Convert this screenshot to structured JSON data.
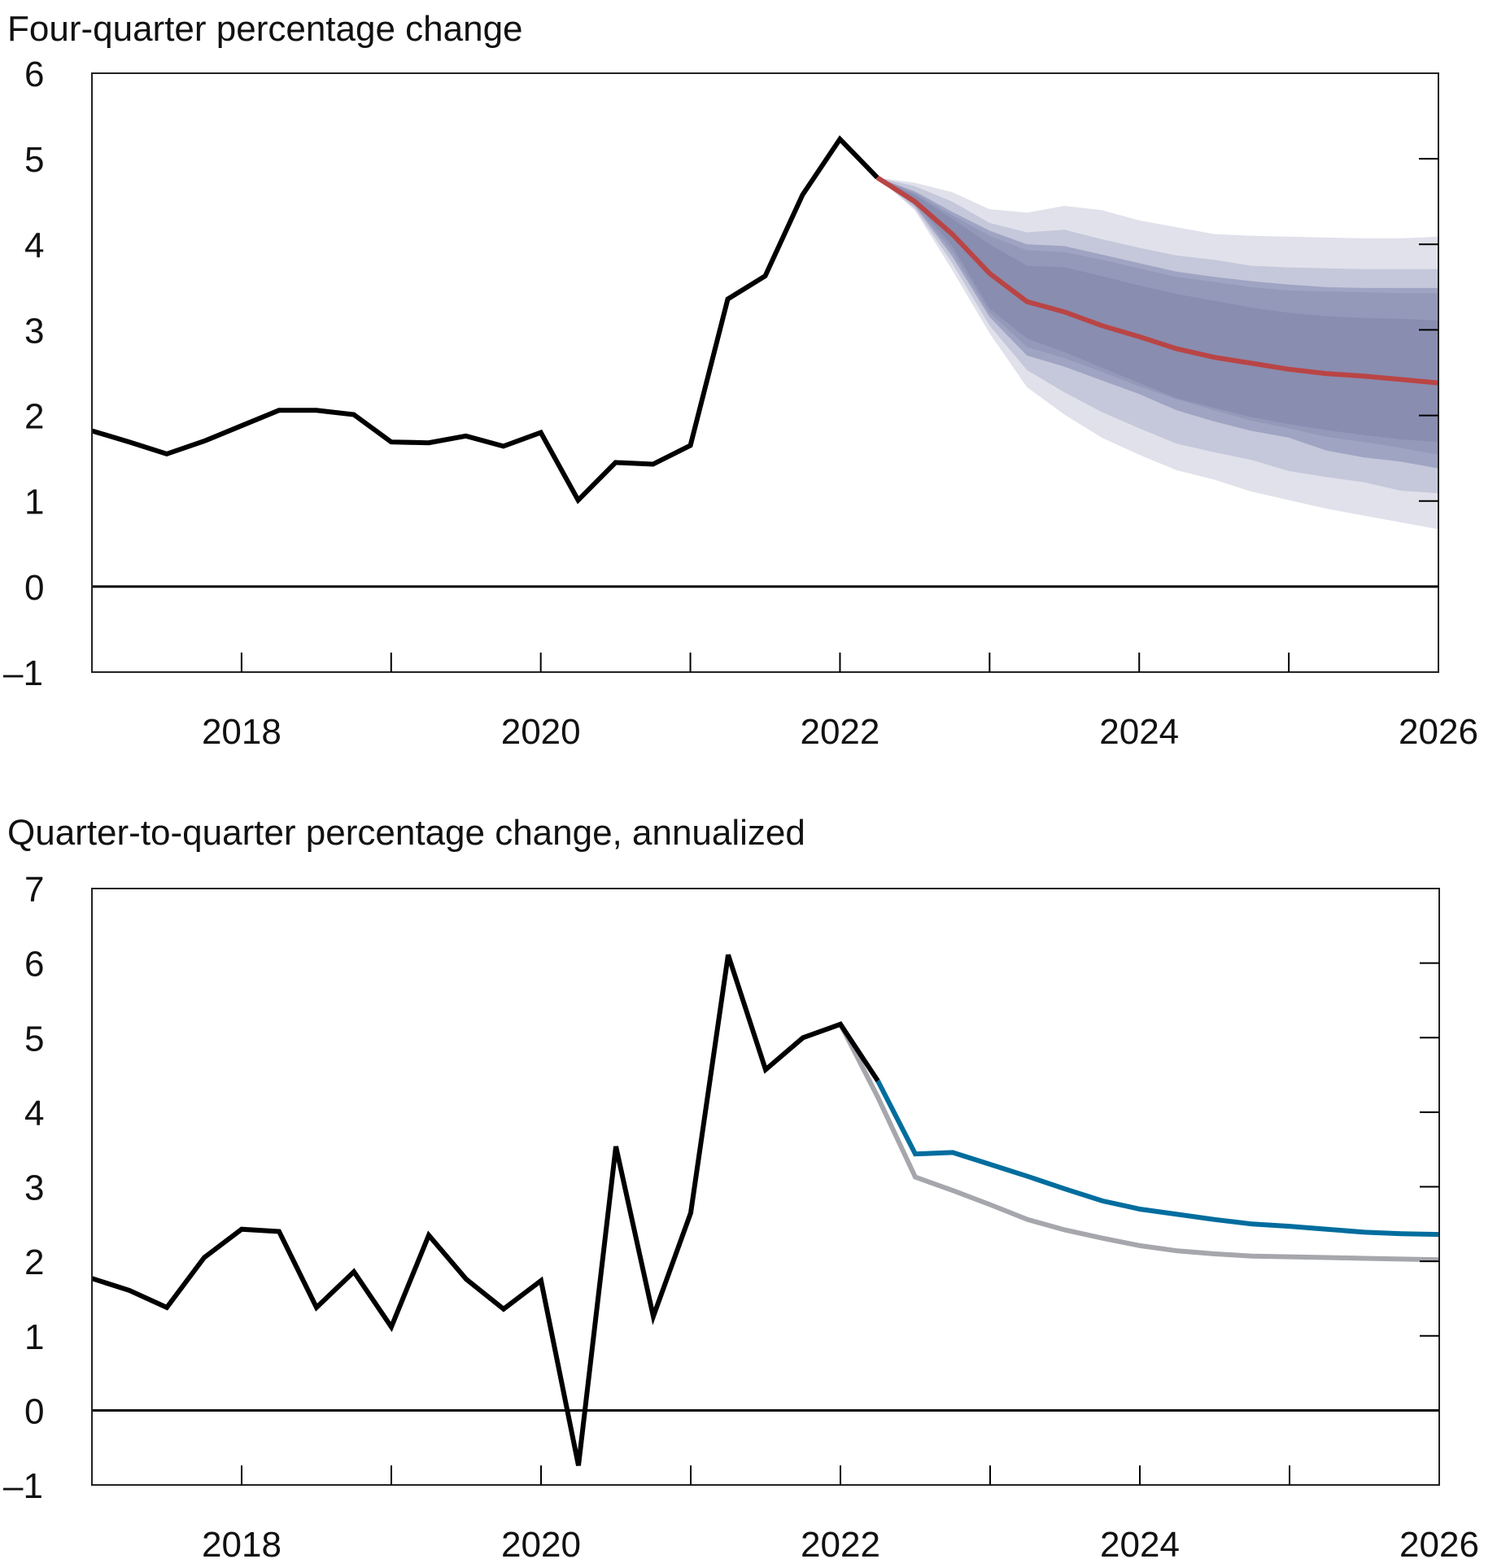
{
  "chart_data": [
    {
      "type": "line",
      "title": "Four-quarter percentage change",
      "ylim": [
        -1,
        6
      ],
      "xlim": [
        "2017Q1",
        "2026Q1"
      ],
      "yticks": [
        "–1",
        "0",
        "1",
        "2",
        "3",
        "4",
        "5",
        "6"
      ],
      "xticks": [
        "2018",
        "2020",
        "2022",
        "2024",
        "2026"
      ],
      "grid": false,
      "colors": {
        "history": "#000000",
        "median": "#b94545",
        "bands": [
          "#e0e1eb",
          "#c5c8da",
          "#a0a4c3",
          "#9499b9",
          "#898db0"
        ]
      },
      "history": {
        "x": [
          "2017Q1",
          "2017Q2",
          "2017Q3",
          "2017Q4",
          "2018Q1",
          "2018Q2",
          "2018Q3",
          "2018Q4",
          "2019Q1",
          "2019Q2",
          "2019Q3",
          "2019Q4",
          "2020Q1",
          "2020Q2",
          "2020Q3",
          "2020Q4",
          "2021Q1",
          "2021Q2",
          "2021Q3",
          "2021Q4",
          "2022Q1",
          "2022Q2"
        ],
        "values": [
          1.82,
          1.69,
          1.55,
          1.7,
          1.88,
          2.06,
          2.06,
          2.01,
          1.69,
          1.68,
          1.76,
          1.64,
          1.8,
          1.01,
          1.45,
          1.43,
          1.65,
          3.36,
          3.63,
          4.58,
          5.23,
          4.78
        ]
      },
      "forecast": {
        "x": [
          "2022Q2",
          "2022Q3",
          "2022Q4",
          "2023Q1",
          "2023Q2",
          "2023Q3",
          "2023Q4",
          "2024Q1",
          "2024Q2",
          "2024Q3",
          "2024Q4",
          "2025Q1",
          "2025Q2",
          "2025Q3",
          "2025Q4",
          "2026Q1"
        ],
        "median": [
          4.78,
          4.5,
          4.12,
          3.66,
          3.33,
          3.21,
          3.05,
          2.92,
          2.78,
          2.68,
          2.61,
          2.54,
          2.49,
          2.46,
          2.42,
          2.38
        ],
        "bands": [
          {
            "upper": [
              4.78,
              4.72,
              4.61,
              4.41,
              4.37,
              4.45,
              4.4,
              4.28,
              4.2,
              4.12,
              4.1,
              4.09,
              4.08,
              4.07,
              4.07,
              4.09
            ],
            "lower": [
              4.78,
              4.4,
              3.7,
              2.96,
              2.33,
              2.01,
              1.74,
              1.54,
              1.36,
              1.25,
              1.11,
              1.01,
              0.91,
              0.83,
              0.75,
              0.67
            ]
          },
          {
            "upper": [
              4.78,
              4.68,
              4.5,
              4.25,
              4.14,
              4.17,
              4.06,
              3.96,
              3.87,
              3.82,
              3.75,
              3.73,
              3.72,
              3.71,
              3.71,
              3.71
            ],
            "lower": [
              4.78,
              4.42,
              3.78,
              3.05,
              2.53,
              2.27,
              2.04,
              1.85,
              1.67,
              1.57,
              1.48,
              1.35,
              1.28,
              1.22,
              1.12,
              1.09
            ]
          },
          {
            "upper": [
              4.78,
              4.62,
              4.38,
              4.16,
              4.0,
              3.98,
              3.88,
              3.78,
              3.68,
              3.62,
              3.57,
              3.53,
              3.5,
              3.49,
              3.49,
              3.49
            ],
            "lower": [
              4.78,
              4.45,
              3.86,
              3.15,
              2.7,
              2.57,
              2.41,
              2.25,
              2.06,
              1.93,
              1.82,
              1.74,
              1.59,
              1.51,
              1.46,
              1.38
            ]
          },
          {
            "upper": [
              4.78,
              4.6,
              4.34,
              4.1,
              3.93,
              3.91,
              3.82,
              3.72,
              3.62,
              3.56,
              3.5,
              3.46,
              3.45,
              3.44,
              3.43,
              3.43
            ],
            "lower": [
              4.78,
              4.47,
              3.92,
              3.2,
              2.8,
              2.67,
              2.51,
              2.34,
              2.19,
              2.06,
              1.94,
              1.85,
              1.75,
              1.69,
              1.62,
              1.54
            ]
          },
          {
            "upper": [
              4.78,
              4.58,
              4.3,
              4.0,
              3.75,
              3.73,
              3.63,
              3.52,
              3.42,
              3.34,
              3.26,
              3.2,
              3.16,
              3.14,
              3.13,
              3.11
            ],
            "lower": [
              4.78,
              4.5,
              3.98,
              3.25,
              2.9,
              2.74,
              2.56,
              2.38,
              2.2,
              2.09,
              1.98,
              1.9,
              1.83,
              1.77,
              1.72,
              1.69
            ]
          }
        ]
      }
    },
    {
      "type": "line",
      "title": "Quarter-to-quarter percentage change, annualized",
      "ylim": [
        -1,
        7
      ],
      "xlim": [
        "2017Q1",
        "2026Q1"
      ],
      "yticks": [
        "–1",
        "0",
        "1",
        "2",
        "3",
        "4",
        "5",
        "6",
        "7"
      ],
      "xticks": [
        "2018",
        "2020",
        "2022",
        "2024",
        "2026"
      ],
      "grid": false,
      "series": [
        {
          "color": "#a6a7ad",
          "x": [
            "2022Q1",
            "2022Q2",
            "2022Q3",
            "2022Q4",
            "2023Q1",
            "2023Q2",
            "2023Q3",
            "2023Q4",
            "2024Q1",
            "2024Q2",
            "2024Q3",
            "2024Q4",
            "2025Q1",
            "2025Q2",
            "2025Q3",
            "2025Q4",
            "2026Q1"
          ],
          "values": [
            5.18,
            4.2,
            3.13,
            2.95,
            2.76,
            2.56,
            2.42,
            2.31,
            2.21,
            2.14,
            2.1,
            2.07,
            2.06,
            2.05,
            2.04,
            2.03,
            2.02
          ]
        },
        {
          "color": "#006d9e",
          "x": [
            "2022Q2",
            "2022Q3",
            "2022Q4",
            "2023Q1",
            "2023Q2",
            "2023Q3",
            "2023Q4",
            "2024Q1",
            "2024Q2",
            "2024Q3",
            "2024Q4",
            "2025Q1",
            "2025Q2",
            "2025Q3",
            "2025Q4",
            "2026Q1"
          ],
          "values": [
            4.42,
            3.44,
            3.46,
            3.3,
            3.14,
            2.97,
            2.81,
            2.7,
            2.63,
            2.56,
            2.5,
            2.47,
            2.43,
            2.39,
            2.37,
            2.36
          ]
        },
        {
          "color": "#000000",
          "x": [
            "2017Q1",
            "2017Q2",
            "2017Q3",
            "2017Q4",
            "2018Q1",
            "2018Q2",
            "2018Q3",
            "2018Q4",
            "2019Q1",
            "2019Q2",
            "2019Q3",
            "2019Q4",
            "2020Q1",
            "2020Q2",
            "2020Q3",
            "2020Q4",
            "2021Q1",
            "2021Q2",
            "2021Q3",
            "2021Q4",
            "2022Q1",
            "2022Q2"
          ],
          "values": [
            1.77,
            1.61,
            1.38,
            2.05,
            2.43,
            2.4,
            1.38,
            1.86,
            1.12,
            2.35,
            1.76,
            1.36,
            1.74,
            -0.74,
            3.54,
            1.26,
            2.65,
            6.11,
            4.57,
            5.0,
            5.18,
            4.42
          ]
        }
      ]
    }
  ]
}
